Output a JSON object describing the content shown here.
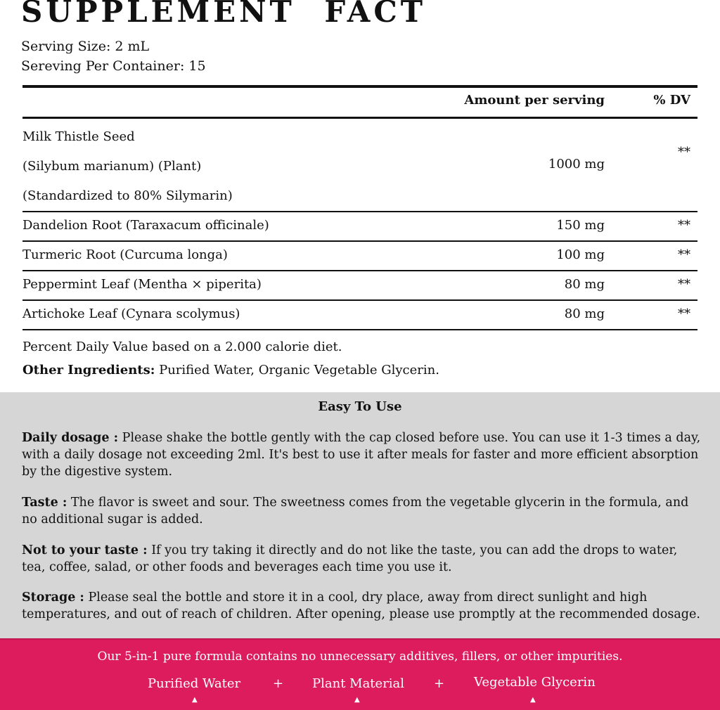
{
  "title": "SUPPLEMENT FACT",
  "serving_size": "Serving Size: 2 mL",
  "servings_per_container": "Sereving Per Container: 15",
  "table": {
    "headers": {
      "amount": "Amount per serving",
      "dv": "% DV"
    },
    "rows": [
      {
        "name": [
          "Milk Thistle Seed",
          "(Silybum marianum) (Plant)",
          "(Standardized to 80% Silymarin)"
        ],
        "amount": "1000 mg",
        "dv": "**"
      },
      {
        "name": "Dandelion Root (Taraxacum officinale)",
        "amount": "150 mg",
        "dv": "**"
      },
      {
        "name": "Turmeric Root (Curcuma longa)",
        "amount": "100 mg",
        "dv": "**"
      },
      {
        "name": "Peppermint Leaf (Mentha × piperita)",
        "amount": "80 mg",
        "dv": "**"
      },
      {
        "name": "Artichoke Leaf (Cynara scolymus)",
        "amount": "80 mg",
        "dv": "**"
      }
    ]
  },
  "footnote": "Percent Daily Value based on a 2.000 calorie diet.",
  "other_label": "Other Ingredients:",
  "other_value": " Purified Water, Organic Vegetable Glycerin.",
  "usage": {
    "title": "Easy To Use",
    "items": [
      {
        "label": "Daily dosage :",
        "text": " Please shake the bottle gently with the cap closed before use. You can use it 1-3 times a day, with a daily dosage not exceeding 2ml. It's best to use it after meals for faster and more efficient absorption by the digestive system."
      },
      {
        "label": "Taste :",
        "text": " The flavor is sweet and sour. The sweetness comes from the vegetable glycerin in the formula, and no additional sugar is added."
      },
      {
        "label": "Not to your taste :",
        "text": " If you try taking it directly and do not like the taste, you can add the drops to water, tea, coffee, salad, or other foods and beverages each time you use it."
      },
      {
        "label": "Storage :",
        "text": " Please seal the bottle and store it in a cool, dry place, away from direct sunlight and high temperatures,  and out of reach of children. After opening, please use promptly at the recommended dosage."
      }
    ]
  },
  "banner": {
    "text": "Our 5-in-1 pure formula contains no unnecessary additives, fillers, or other impurities.",
    "ingredients": [
      "Purified Water",
      "Plant Material",
      "Vegetable Glycerin"
    ],
    "plus": "+",
    "arrow": "▲"
  },
  "colors": {
    "banner": "#dc1c5c",
    "usage_bg": "#d6d6d6"
  }
}
